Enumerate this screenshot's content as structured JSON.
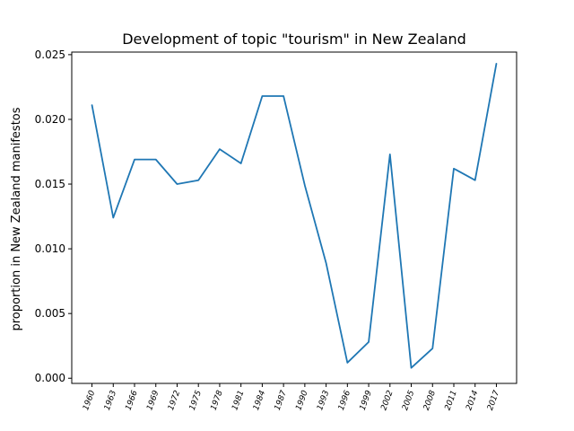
{
  "chart_data": {
    "type": "line",
    "title": "Development of topic \"tourism\" in New Zealand",
    "xlabel": "",
    "ylabel": "proportion in New Zealand manifestos",
    "categories": [
      "1960",
      "1963",
      "1966",
      "1969",
      "1972",
      "1975",
      "1978",
      "1981",
      "1984",
      "1987",
      "1990",
      "1993",
      "1996",
      "1999",
      "2002",
      "2005",
      "2008",
      "2011",
      "2014",
      "2017"
    ],
    "series": [
      {
        "values": [
          0.0211,
          0.0124,
          0.0169,
          0.0169,
          0.015,
          0.0153,
          0.0177,
          0.0166,
          0.0218,
          0.0218,
          0.0149,
          0.0089,
          0.0012,
          0.0028,
          0.0173,
          0.0008,
          0.0023,
          0.0162,
          0.0153,
          0.0243
        ],
        "color": "#1f77b4"
      }
    ],
    "ylim": [
      -0.0004,
      0.0252
    ],
    "yticks": [
      "0.000",
      "0.005",
      "0.010",
      "0.015",
      "0.020",
      "0.025"
    ],
    "ytick_values": [
      0,
      0.005,
      0.01,
      0.015,
      0.02,
      0.025
    ],
    "grid": false,
    "legend": "none"
  }
}
